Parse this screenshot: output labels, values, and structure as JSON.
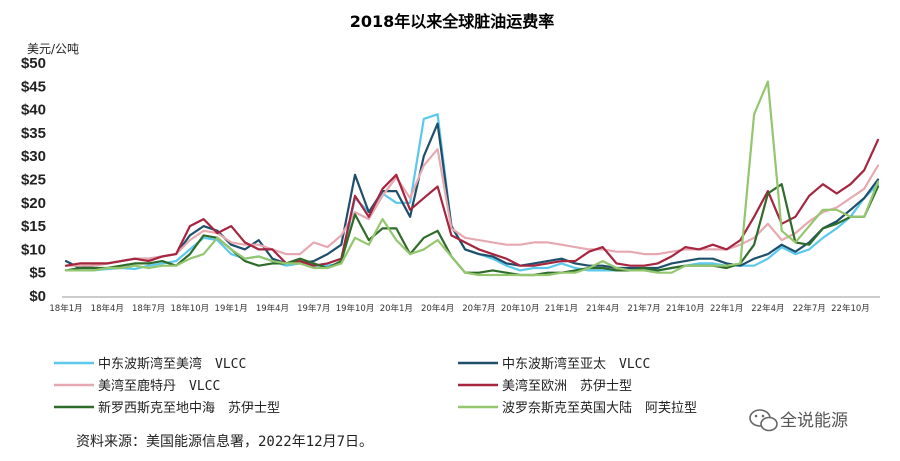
{
  "chart_data": {
    "type": "line",
    "title": "2018年以来全球脏油运费率",
    "ylabel": "美元/公吨",
    "ylim": [
      0,
      50
    ],
    "yticks": [
      "$0",
      "$5",
      "$10",
      "$15",
      "$20",
      "$25",
      "$30",
      "$35",
      "$40",
      "$45",
      "$50"
    ],
    "xticks": [
      "18年1月",
      "18年4月",
      "18年7月",
      "18年10月",
      "19年1月",
      "19年4月",
      "19年7月",
      "19年10月",
      "20年1月",
      "20年4月",
      "20年7月",
      "20年10月",
      "21年1月",
      "21年4月",
      "21年7月",
      "21年10月",
      "22年1月",
      "22年4月",
      "22年7月",
      "22年10月"
    ],
    "x": [
      "2018-01",
      "2018-02",
      "2018-03",
      "2018-04",
      "2018-05",
      "2018-06",
      "2018-07",
      "2018-08",
      "2018-09",
      "2018-10",
      "2018-11",
      "2018-12",
      "2019-01",
      "2019-02",
      "2019-03",
      "2019-04",
      "2019-05",
      "2019-06",
      "2019-07",
      "2019-08",
      "2019-09",
      "2019-10",
      "2019-11",
      "2019-12",
      "2020-01",
      "2020-02",
      "2020-03",
      "2020-04",
      "2020-05",
      "2020-06",
      "2020-07",
      "2020-08",
      "2020-09",
      "2020-10",
      "2020-11",
      "2020-12",
      "2021-01",
      "2021-02",
      "2021-03",
      "2021-04",
      "2021-05",
      "2021-06",
      "2021-07",
      "2021-08",
      "2021-09",
      "2021-10",
      "2021-11",
      "2021-12",
      "2022-01",
      "2022-02",
      "2022-03",
      "2022-04",
      "2022-05",
      "2022-06",
      "2022-07",
      "2022-08",
      "2022-09",
      "2022-10",
      "2022-11",
      "2022-12"
    ],
    "grid": false,
    "legend_position": "bottom",
    "series": [
      {
        "name": "中东波斯湾至美湾　VLCC",
        "color": "#5bc8ec",
        "values": [
          5.5,
          5.5,
          5.5,
          5.8,
          6,
          5.8,
          6.5,
          7,
          7.5,
          10,
          12.5,
          12,
          9,
          8,
          8.5,
          7.5,
          6.5,
          7,
          6.5,
          6.5,
          7,
          21,
          18,
          22,
          20,
          20,
          38,
          39,
          15,
          10,
          9,
          8,
          6.5,
          5.5,
          6,
          6,
          7,
          6,
          5.5,
          5.5,
          5.5,
          5.5,
          5.5,
          5.5,
          6,
          6.5,
          7,
          7,
          6.5,
          6.5,
          6.5,
          8,
          10.5,
          9,
          10,
          12.5,
          14.5,
          17,
          21,
          24
        ]
      },
      {
        "name": "中东波斯湾至亚太　VLCC",
        "color": "#1f4f6b",
        "values": [
          7.5,
          6,
          6.5,
          7,
          7.5,
          8,
          8,
          8.5,
          9,
          13,
          15,
          14,
          11,
          10,
          12,
          8,
          7,
          7,
          7.5,
          9,
          11,
          26,
          18,
          22.5,
          22.5,
          17,
          30,
          37,
          15,
          10,
          9,
          8.5,
          7,
          6.5,
          7,
          7.5,
          8,
          7,
          6.5,
          6.5,
          6,
          6,
          6,
          6,
          7,
          7.5,
          8,
          8,
          7,
          6.5,
          8,
          9,
          11,
          9.5,
          11.5,
          14.5,
          16,
          18.5,
          21,
          25
        ]
      },
      {
        "name": "美湾至鹿特丹　VLCC",
        "color": "#e6a9b1",
        "values": [
          6.5,
          6.5,
          6.5,
          7,
          7.5,
          8,
          8,
          8.5,
          9,
          12,
          14,
          13.5,
          11.5,
          11,
          11,
          10,
          9,
          9,
          11.5,
          10.5,
          13,
          18,
          16.5,
          21.5,
          25.5,
          21,
          28,
          31.5,
          14.5,
          12.5,
          12,
          11.5,
          11,
          11,
          11.5,
          11.5,
          11,
          10.5,
          10,
          10,
          9.5,
          9.5,
          9,
          9,
          9.5,
          10,
          10,
          10,
          10,
          11,
          12.5,
          15.5,
          12,
          13.5,
          16,
          18,
          19,
          21,
          23,
          28
        ]
      },
      {
        "name": "美湾至欧洲　苏伊士型",
        "color": "#a6253f",
        "values": [
          6.5,
          7,
          7,
          7,
          7.5,
          8,
          7.5,
          8.5,
          9,
          15,
          16.5,
          13.5,
          15,
          11.5,
          10,
          10,
          7,
          7.5,
          6.5,
          7,
          8,
          21.5,
          17,
          23,
          26,
          18.5,
          21,
          23.5,
          13,
          11.5,
          10,
          9,
          8,
          6.5,
          6.5,
          7,
          7.5,
          7.5,
          9.5,
          10.5,
          7,
          6.5,
          6.5,
          7,
          8.5,
          10.5,
          10,
          11,
          10,
          12,
          17,
          22.5,
          15.5,
          17,
          21.5,
          24,
          22,
          24,
          27,
          33.5
        ]
      },
      {
        "name": "新罗西斯克至地中海　苏伊士型",
        "color": "#2f6b2a",
        "values": [
          5.5,
          6,
          6,
          6,
          6.5,
          7,
          7,
          7.5,
          6.5,
          9,
          13,
          12.5,
          10,
          7.5,
          6.5,
          7,
          7,
          8,
          7,
          6,
          7.5,
          17.5,
          12,
          14.5,
          14.5,
          9,
          12.5,
          14,
          8.5,
          5,
          5,
          5.5,
          5,
          4.5,
          4.5,
          5,
          5,
          5.5,
          6,
          6,
          5.5,
          5.5,
          6,
          5.5,
          6,
          6.5,
          6.5,
          6.5,
          6,
          7,
          11,
          22,
          24,
          11.5,
          11,
          14.5,
          15.5,
          17,
          17,
          23.5
        ]
      },
      {
        "name": "波罗奈斯克至英国大陆　阿芙拉型",
        "color": "#93c66e",
        "values": [
          5.5,
          5.5,
          5.5,
          6,
          6,
          6.5,
          6,
          6.5,
          6.5,
          8,
          9,
          12.5,
          10,
          8,
          8.5,
          7.5,
          7,
          7,
          6,
          6,
          7,
          12.5,
          11,
          16.5,
          12,
          9,
          10,
          12,
          8.5,
          5,
          4.5,
          4.5,
          4.5,
          4.5,
          4.5,
          4.5,
          5,
          5,
          6,
          7.5,
          6,
          5.5,
          5.5,
          5,
          5,
          6.5,
          6.5,
          6.5,
          6.5,
          7,
          39,
          46,
          14,
          11.5,
          15,
          18.5,
          18.5,
          17,
          17,
          24.5
        ]
      }
    ]
  },
  "source_note": "资料来源：美国能源信息署，2022年12月7日。",
  "watermark": "全说能源",
  "watermark_icon": "wechat-icon"
}
